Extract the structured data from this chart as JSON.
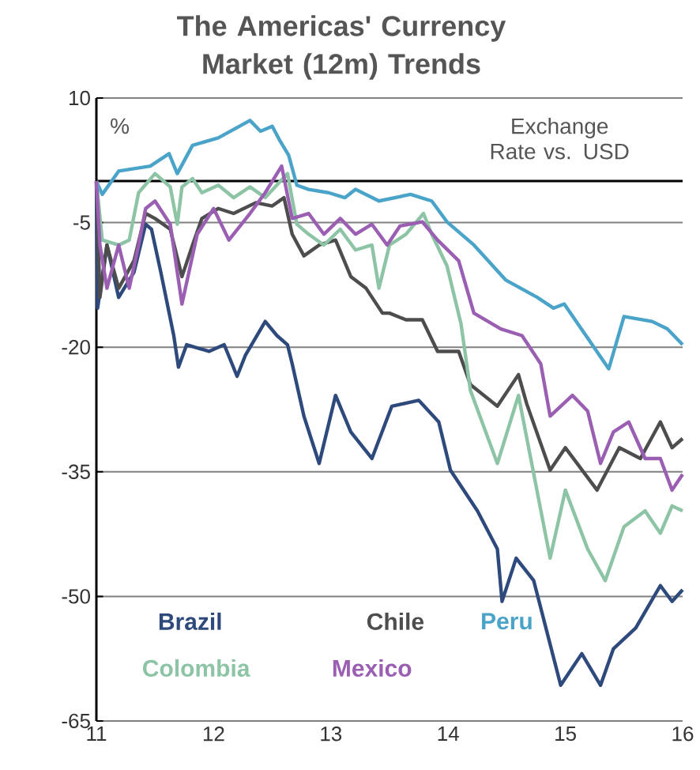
{
  "chart_data": {
    "type": "line",
    "title": "The Americas' Currency Market (12m) Trends",
    "annotations": [
      "%",
      "Exchange Rate vs. USD"
    ],
    "xlim": [
      11,
      16
    ],
    "xticks": [
      11,
      12,
      13,
      14,
      15,
      16
    ],
    "ylim": [
      -65,
      10
    ],
    "yticks": [
      10,
      -5,
      -20,
      -35,
      -50,
      -65
    ],
    "grid": "y",
    "legend": "bottom left",
    "marker": "none",
    "line_style": "solid",
    "ref_lines": [
      {
        "axis": "y",
        "value": 0,
        "color": "#000000"
      }
    ],
    "series": [
      {
        "name": "Brazil",
        "color": "#2e4a7d",
        "x": [
          11,
          11.01,
          11.09,
          11.19,
          11.32,
          11.42,
          11.47,
          11.55,
          11.66,
          11.7,
          11.77,
          11.96,
          12.09,
          12.2,
          12.27,
          12.44,
          12.54,
          12.63,
          12.67,
          12.77,
          12.9,
          13.04,
          13.17,
          13.35,
          13.52,
          13.75,
          13.92,
          14.02,
          14.25,
          14.42,
          14.46,
          14.58,
          14.73,
          14.96,
          15.14,
          15.3,
          15.41,
          15.6,
          15.81,
          15.91,
          16
        ],
        "values": [
          0,
          -15.3,
          -7.7,
          -14,
          -11,
          -5.2,
          -5.8,
          -11,
          -18.6,
          -22.4,
          -19.7,
          -20.5,
          -19.7,
          -23.5,
          -21,
          -16.9,
          -18.6,
          -19.7,
          -22,
          -28.3,
          -34,
          -25.8,
          -30.2,
          -33.4,
          -27.1,
          -26.4,
          -29,
          -34.8,
          -39.7,
          -44.3,
          -50.6,
          -45.4,
          -48.1,
          -60.7,
          -56.9,
          -60.7,
          -56.3,
          -53.8,
          -48.7,
          -50.6,
          -49.2
        ]
      },
      {
        "name": "Chile",
        "color": "#4d4d4d",
        "x": [
          11,
          11.03,
          11.09,
          11.19,
          11.32,
          11.42,
          11.5,
          11.63,
          11.73,
          11.82,
          11.9,
          12.04,
          12.17,
          12.36,
          12.5,
          12.6,
          12.67,
          12.77,
          12.9,
          13.04,
          13.17,
          13.3,
          13.44,
          13.5,
          13.64,
          13.78,
          13.91,
          14.09,
          14.19,
          14.42,
          14.6,
          14.67,
          14.87,
          15,
          15.27,
          15.46,
          15.64,
          15.81,
          15.91,
          16
        ],
        "values": [
          0,
          -14,
          -7.7,
          -12.9,
          -9.6,
          -3.9,
          -4.5,
          -5.8,
          -11.5,
          -7.7,
          -4.5,
          -3.3,
          -3.9,
          -2.6,
          -3,
          -2,
          -6.4,
          -9,
          -7.7,
          -7.1,
          -11.5,
          -12.9,
          -15.9,
          -15.9,
          -16.7,
          -16.7,
          -20.5,
          -20.5,
          -24.5,
          -27.1,
          -23.3,
          -26.8,
          -34.8,
          -32.1,
          -37.2,
          -32.1,
          -33.4,
          -29,
          -32.1,
          -31
        ]
      },
      {
        "name": "Peru",
        "color": "#4aa3c9",
        "x": [
          11,
          11.05,
          11.19,
          11.46,
          11.62,
          11.69,
          11.82,
          12.04,
          12.31,
          12.4,
          12.5,
          12.56,
          12.64,
          12.71,
          12.81,
          12.98,
          13.12,
          13.21,
          13.41,
          13.68,
          13.86,
          13.99,
          14.22,
          14.49,
          14.76,
          14.9,
          14.99,
          15.2,
          15.37,
          15.5,
          15.74,
          15.87,
          16
        ],
        "values": [
          0,
          -1.6,
          1.2,
          1.8,
          3.3,
          0.9,
          4.3,
          5.2,
          7.3,
          6,
          6.6,
          5,
          3.1,
          -0.5,
          -1,
          -1.4,
          -2,
          -1,
          -2.4,
          -1.6,
          -2.4,
          -4.9,
          -7.7,
          -11.9,
          -14,
          -15.3,
          -14.8,
          -19.1,
          -22.6,
          -16.3,
          -16.9,
          -17.8,
          -19.7
        ]
      },
      {
        "name": "Colombia",
        "color": "#8cc4a5",
        "x": [
          11,
          11.05,
          11.19,
          11.28,
          11.36,
          11.5,
          11.63,
          11.69,
          11.73,
          11.82,
          11.9,
          12.04,
          12.17,
          12.31,
          12.44,
          12.63,
          12.71,
          12.81,
          12.94,
          13.08,
          13.21,
          13.35,
          13.41,
          13.5,
          13.64,
          13.79,
          13.86,
          13.99,
          14.11,
          14.19,
          14.42,
          14.6,
          14.87,
          15,
          15.19,
          15.34,
          15.5,
          15.68,
          15.81,
          15.91,
          16
        ],
        "values": [
          0,
          -7.1,
          -7.7,
          -7.1,
          -1.4,
          0.9,
          -0.7,
          -5.2,
          -0.7,
          0.3,
          -1.4,
          -0.5,
          -2,
          -0.7,
          -2,
          0.9,
          -5.2,
          -6.4,
          -7.7,
          -5.8,
          -8.3,
          -7.7,
          -12.9,
          -7.7,
          -6.4,
          -3.9,
          -6.4,
          -10.2,
          -17.2,
          -25.2,
          -34,
          -25.8,
          -45.4,
          -37.2,
          -44.3,
          -48.1,
          -41.6,
          -39.7,
          -42.4,
          -39.1,
          -39.7
        ]
      },
      {
        "name": "Mexico",
        "color": "#9a5fb2",
        "x": [
          11,
          11.03,
          11.09,
          11.19,
          11.28,
          11.36,
          11.42,
          11.5,
          11.63,
          11.73,
          11.86,
          12,
          12.13,
          12.31,
          12.44,
          12.58,
          12.67,
          12.81,
          12.94,
          13.08,
          13.21,
          13.35,
          13.48,
          13.59,
          13.78,
          13.91,
          14.09,
          14.22,
          14.45,
          14.63,
          14.79,
          14.87,
          15.06,
          15.19,
          15.3,
          15.41,
          15.54,
          15.68,
          15.81,
          15.91,
          16
        ],
        "values": [
          0,
          -7.7,
          -12.9,
          -7.7,
          -12.9,
          -7.7,
          -3.3,
          -2.4,
          -5.2,
          -14.8,
          -6.4,
          -3.3,
          -7.1,
          -3.9,
          -1.4,
          1.8,
          -4.5,
          -3.9,
          -6.4,
          -4.5,
          -6.4,
          -5.2,
          -7.7,
          -5.4,
          -4.9,
          -7.1,
          -9.6,
          -15.9,
          -17.8,
          -18.6,
          -22,
          -28.3,
          -25.8,
          -27.7,
          -34,
          -30.2,
          -29,
          -33.4,
          -33.4,
          -37.2,
          -35.3
        ]
      }
    ]
  }
}
